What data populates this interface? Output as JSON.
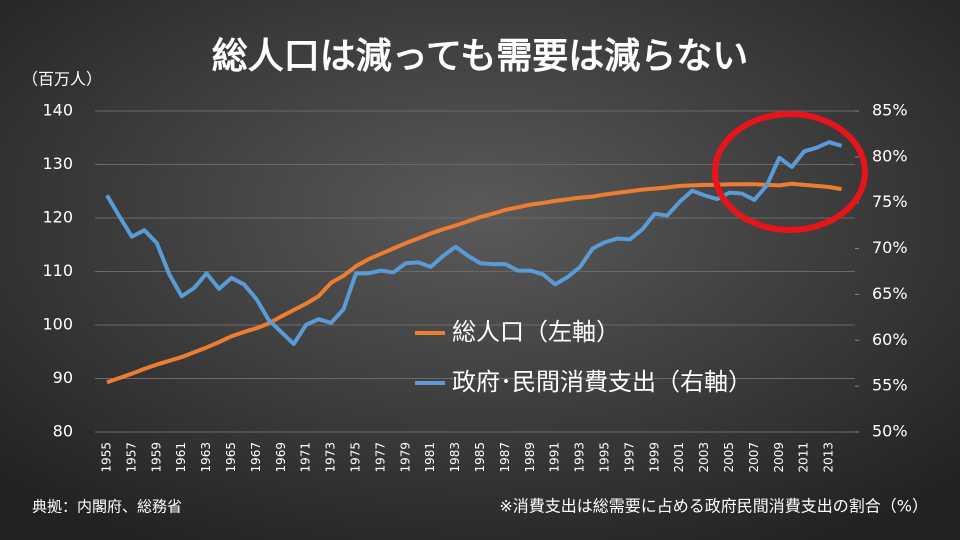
{
  "chart_data": {
    "type": "line",
    "title": "総人口は減っても需要は減らない",
    "y_label": "（百万人）",
    "source": "典拠：内閣府、総務省",
    "note": "※消費支出は総需要に占める政府民間消費支出の割合（%）",
    "categories": [
      "1955",
      null,
      "1957",
      null,
      "1959",
      null,
      "1961",
      null,
      "1963",
      null,
      "1965",
      null,
      "1967",
      null,
      "1969",
      null,
      "1971",
      null,
      "1973",
      null,
      "1975",
      null,
      "1977",
      null,
      "1979",
      null,
      "1981",
      null,
      "1983",
      null,
      "1985",
      null,
      "1987",
      null,
      "1989",
      null,
      "1991",
      null,
      "1993",
      null,
      "1995",
      null,
      "1997",
      null,
      "1999",
      null,
      "2001",
      null,
      "2003",
      null,
      "2005",
      null,
      "2007",
      null,
      "2009",
      null,
      "2011",
      null,
      "2013",
      null
    ],
    "series": [
      {
        "name": "総人口（左軸）",
        "color": "#ed7d31",
        "axis": "y",
        "values": [
          89.3,
          90.1,
          90.9,
          91.8,
          92.6,
          93.3,
          94.0,
          94.9,
          95.8,
          96.8,
          97.9,
          98.7,
          99.4,
          100.3,
          101.6,
          102.8,
          104.0,
          105.4,
          107.9,
          109.2,
          111.0,
          112.3,
          113.3,
          114.3,
          115.3,
          116.2,
          117.1,
          117.9,
          118.6,
          119.4,
          120.2,
          120.8,
          121.5,
          122.0,
          122.5,
          122.8,
          123.2,
          123.5,
          123.8,
          124.0,
          124.4,
          124.7,
          125.0,
          125.3,
          125.5,
          125.7,
          126.0,
          126.1,
          126.2,
          126.2,
          126.3,
          126.3,
          126.3,
          126.2,
          126.1,
          126.4,
          126.2,
          126.0,
          125.8,
          125.4
        ]
      },
      {
        "name": "政府･民間消費支出（右軸）",
        "color": "#5b9bd5",
        "axis": "y2",
        "values": [
          75.8,
          73.5,
          71.3,
          72.0,
          70.6,
          67.2,
          64.8,
          65.7,
          67.3,
          65.6,
          66.8,
          66.1,
          64.5,
          62.2,
          60.9,
          59.6,
          61.7,
          62.3,
          61.9,
          63.4,
          67.3,
          67.3,
          67.6,
          67.4,
          68.4,
          68.5,
          68.0,
          69.2,
          70.2,
          69.2,
          68.4,
          68.3,
          68.3,
          67.6,
          67.6,
          67.2,
          66.1,
          66.9,
          68.0,
          70.0,
          70.7,
          71.1,
          71.0,
          72.1,
          73.8,
          73.6,
          75.1,
          76.3,
          75.8,
          75.4,
          76.1,
          76.0,
          75.3,
          76.9,
          79.9,
          78.9,
          80.6,
          81.0,
          81.6,
          81.2
        ]
      }
    ],
    "ylim": [
      80,
      140
    ],
    "yticks": [
      80,
      90,
      100,
      110,
      120,
      130,
      140
    ],
    "y2lim": [
      50,
      85
    ],
    "y2ticks": [
      {
        "value": 50,
        "label": "50%"
      },
      {
        "value": 55,
        "label": "55%"
      },
      {
        "value": 60,
        "label": "60%"
      },
      {
        "value": 65,
        "label": "65%"
      },
      {
        "value": 70,
        "label": "70%"
      },
      {
        "value": 75,
        "label": "75%"
      },
      {
        "value": 80,
        "label": "80%"
      },
      {
        "value": 85,
        "label": "85%"
      }
    ],
    "grid": true
  }
}
